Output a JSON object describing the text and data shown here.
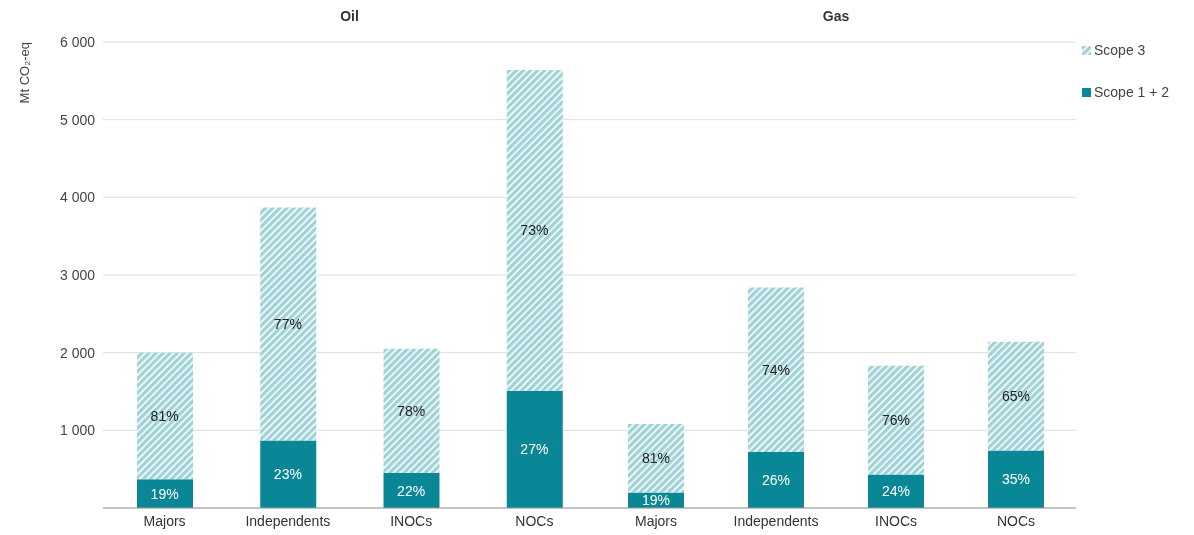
{
  "chart_data": [
    {
      "type": "bar",
      "title": "Oil",
      "ylabel": "Mt CO₂-eq",
      "categories": [
        "Majors",
        "Independents",
        "INOCs",
        "NOCs"
      ],
      "stacked": true,
      "series": [
        {
          "color": "#0a8796",
          "values": [
            370,
            870,
            450,
            1510
          ]
        },
        {
          "color": "#9fd3d8",
          "values": [
            1630,
            3000,
            1600,
            4130
          ]
        }
      ],
      "annotations": [
        "19%",
        "23%",
        "22%",
        "27%",
        "81%",
        "77%",
        "78%",
        "73%"
      ],
      "ylim": [
        0,
        6000
      ],
      "yticks": [
        {
          "value": 1000,
          "label": "1 000"
        },
        {
          "value": 2000,
          "label": "2 000"
        },
        {
          "value": 3000,
          "label": "3 000"
        },
        {
          "value": 4000,
          "label": "4 000"
        },
        {
          "value": 5000,
          "label": "5 000"
        },
        {
          "value": 6000,
          "label": "6 000"
        }
      ],
      "grid": "y"
    },
    {
      "type": "bar",
      "title": "Gas",
      "categories": [
        "Majors",
        "Independents",
        "INOCs",
        "NOCs"
      ],
      "stacked": true,
      "series": [
        {
          "name": "Scope 1 + 2",
          "color": "#0a8796",
          "values": [
            200,
            720,
            430,
            740
          ]
        },
        {
          "name": "Scope 3",
          "color": "#9fd3d8",
          "values": [
            880,
            2120,
            1400,
            1400
          ]
        }
      ],
      "annotations": [
        "19%",
        "26%",
        "24%",
        "35%",
        "81%",
        "74%",
        "76%",
        "65%"
      ],
      "ylim": [
        0,
        6000
      ],
      "yticks": [
        1000,
        2000,
        3000,
        4000,
        5000,
        6000
      ],
      "grid": "y",
      "legend": "top right",
      "tick_labels": "x"
    }
  ]
}
